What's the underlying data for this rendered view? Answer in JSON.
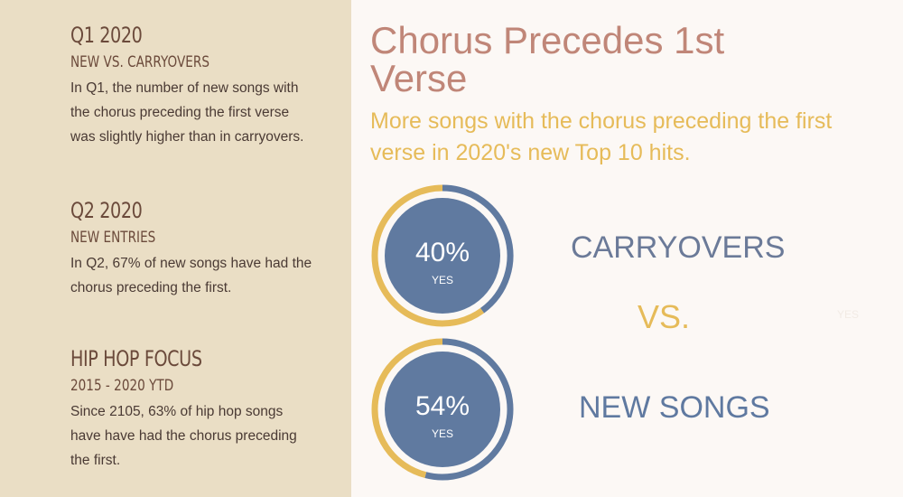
{
  "sidebar": {
    "sections": [
      {
        "heading": "Q1 2020",
        "subheading": "NEW VS. CARRYOVERS",
        "body": "In Q1, the number of new songs with the chorus preceding the first verse was slightly higher than in carryovers."
      },
      {
        "heading": "Q2 2020",
        "subheading": "NEW ENTRIES",
        "body": "In Q2, 67% of new songs have had the chorus preceding the first."
      },
      {
        "heading": "HIP HOP FOCUS",
        "subheading": "2015 - 2020 YTD",
        "body": "Since 2105, 63% of hip hop songs have have had the chorus preceding the first."
      }
    ]
  },
  "main": {
    "title": "Chorus Precedes 1st Verse",
    "subtitle": "More songs with the chorus preceding the first verse in 2020's new Top 10 hits.",
    "vs_label": "VS.",
    "faint_label": "YES"
  },
  "chart_data": {
    "type": "pie",
    "title": "Chorus Precedes 1st Verse",
    "series": [
      {
        "name": "CARRYOVERS",
        "value": 40,
        "value_label": "40%",
        "center_label": "YES"
      },
      {
        "name": "NEW SONGS",
        "value": 54,
        "value_label": "54%",
        "center_label": "YES"
      }
    ],
    "colors": {
      "value_ring": "#607aa0",
      "remainder_ring": "#e6bb59",
      "center_fill": "#607aa0",
      "text": "#ffffff"
    }
  }
}
